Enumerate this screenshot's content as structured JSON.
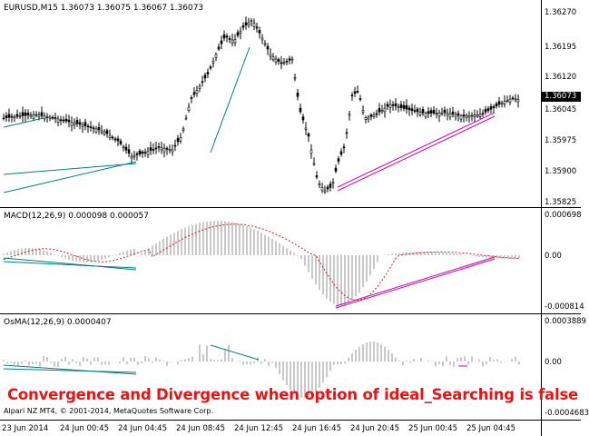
{
  "price_panel": {
    "title": "EURUSD,M15  1.36073 1.36075 1.36067 1.36073",
    "y_labels": [
      "1.36270",
      "1.36195",
      "1.36120",
      "1.36045",
      "1.35975",
      "1.35900",
      "1.35825"
    ],
    "current_price": "1.36073"
  },
  "macd_panel": {
    "title": "MACD(12,26,9) 0.000098 0.000057",
    "y_labels": [
      "0.000698",
      "0.00",
      "-0.000814"
    ]
  },
  "osma_panel": {
    "title": "OsMA(12,26,9) 0.0000407",
    "y_labels": [
      "0.0003889",
      "0.00",
      "-0.0004683"
    ]
  },
  "caption": "Convergence and Divergence when option of ideal_Searching is false",
  "copyright": "Alpari NZ MT4, © 2001-2014, MetaQuotes Software Corp.",
  "x_labels": [
    "23 Jun 2014",
    "24 Jun 00:45",
    "24 Jun 04:45",
    "24 Jun 08:45",
    "24 Jun 12:45",
    "24 Jun 16:45",
    "24 Jun 20:45",
    "25 Jun 00:45",
    "25 Jun 04:45"
  ],
  "colors": {
    "candle": "#000000",
    "signal": "#ee1111",
    "bull_line": "#cc00aa",
    "bear_line": "#008080",
    "histogram": "#b0b0b0"
  }
}
